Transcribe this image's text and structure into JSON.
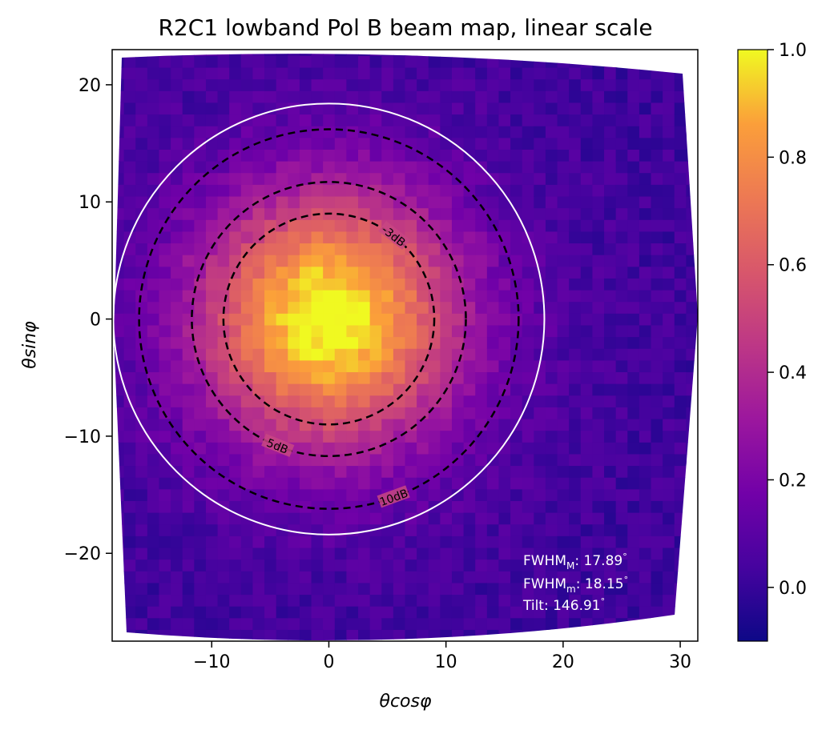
{
  "chart_data": {
    "type": "heatmap",
    "title": "R2C1 lowband Pol B beam map, linear scale",
    "xlabel": "θcosφ",
    "ylabel": "θsinφ",
    "xlim": [
      -18.5,
      31.5
    ],
    "ylim": [
      -27.5,
      23
    ],
    "x_ticks": [
      -10,
      0,
      10,
      20,
      30
    ],
    "x_tick_labels": [
      "−10",
      "0",
      "10",
      "20",
      "30"
    ],
    "y_ticks": [
      -20,
      -10,
      0,
      10,
      20
    ],
    "y_tick_labels": [
      "−20",
      "−10",
      "0",
      "10",
      "20"
    ],
    "colormap": "plasma",
    "colorbar": {
      "min": -0.1,
      "max": 1.0,
      "ticks": [
        0.0,
        0.2,
        0.4,
        0.6,
        0.8,
        1.0
      ],
      "tick_labels": [
        "0.0",
        "0.2",
        "0.4",
        "0.6",
        "0.8",
        "1.0"
      ]
    },
    "beam_center": [
      0,
      0
    ],
    "fwhm_circle_radius": 18.4,
    "contours": [
      {
        "label": "-3dB",
        "radius": 9.0
      },
      {
        "label": "5dB",
        "radius": 11.7
      },
      {
        "label": "10dB",
        "radius": 16.2
      }
    ],
    "annotations": [
      "FWHM_M: 17.89°",
      "FWHM_m: 18.15°",
      "Tilt: 146.91°"
    ]
  },
  "annotation_text": {
    "fwhm_major": {
      "base": "FWHM",
      "sub": "M",
      "value": ": 17.89",
      "unit": "°"
    },
    "fwhm_minor": {
      "base": "FWHM",
      "sub": "m",
      "value": ": 18.15",
      "unit": "°"
    },
    "tilt": {
      "base": "Tilt",
      "value": ": 146.91",
      "unit": "°"
    }
  }
}
